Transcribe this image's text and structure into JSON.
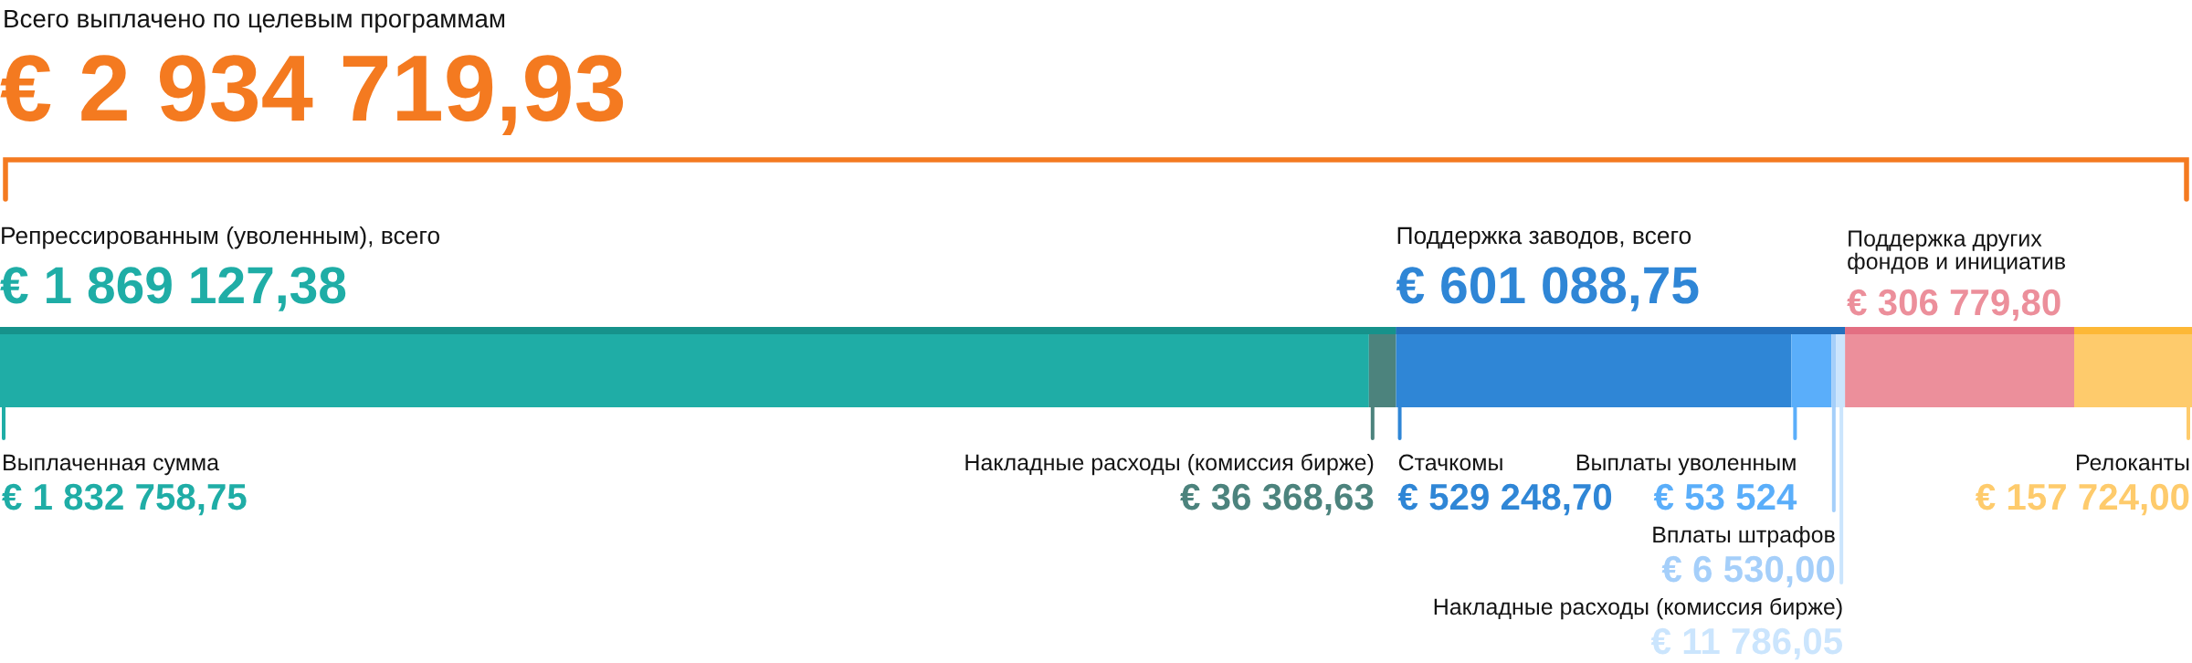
{
  "chart_data": {
    "type": "bar",
    "orientation": "horizontal",
    "stacked": true,
    "tick_labels": false,
    "title": "Всего выплачено по целевым программам",
    "totals": [
      "€ 2 934 719,93"
    ],
    "categories": [
      null
    ],
    "series": [
      {
        "name": "Выплаченная сумма",
        "color": "#1fada6",
        "values": [
          1832758.75
        ],
        "value_labels": [
          "€ 1 832 758,75"
        ]
      },
      {
        "name": "Накладные расходы (комиссия бирже)",
        "color": "#4c837d",
        "values": [
          36368.63
        ],
        "value_labels": [
          "€ 36 368,63"
        ]
      },
      {
        "name": "Стачкомы",
        "color": "#2f86d6",
        "values": [
          529248.7
        ],
        "value_labels": [
          "€ 529 248,70"
        ]
      },
      {
        "name": "Выплаты уволенным",
        "color": "#5aaefa",
        "values": [
          53524
        ],
        "value_labels": [
          "€ 53 524"
        ]
      },
      {
        "name": "Вплаты штрафов",
        "color": "#a5cffa",
        "values": [
          6530.0
        ],
        "value_labels": [
          "€ 6 530,00"
        ]
      },
      {
        "name": "Накладные расходы (комиссия бирже)",
        "color": "#cbe5fd",
        "values": [
          11786.05
        ],
        "value_labels": [
          "€ 11 786,05"
        ]
      },
      {
        "name": "Поддержка других\nфондов и инициатив",
        "color": "#ec8f9b",
        "values": [
          306779.8
        ],
        "value_labels": [
          "€ 306 779,80"
        ]
      },
      {
        "name": "Релоканты",
        "color": "#fecb6c",
        "values": [
          157724.0
        ],
        "value_labels": [
          "€ 157 724,00"
        ]
      }
    ],
    "bands": [
      {
        "axis": "x",
        "from": 0,
        "to": 1869127.38,
        "color": "#16928b",
        "label": "€ 1 869 127,38"
      },
      {
        "axis": "x",
        "from": 1869127.38,
        "to": 2470216.13,
        "color": "#2470bd",
        "label": "€ 601 088,75"
      },
      {
        "axis": "x",
        "from": 2470216.13,
        "to": 2776995.93,
        "color": "#e36f82"
      },
      {
        "axis": "x",
        "from": 2776995.93,
        "to": 2934719.93,
        "color": "#fdb836"
      }
    ],
    "annotations": [
      "Репрессированным (уволенным), всего",
      "Поддержка заводов, всего"
    ]
  }
}
